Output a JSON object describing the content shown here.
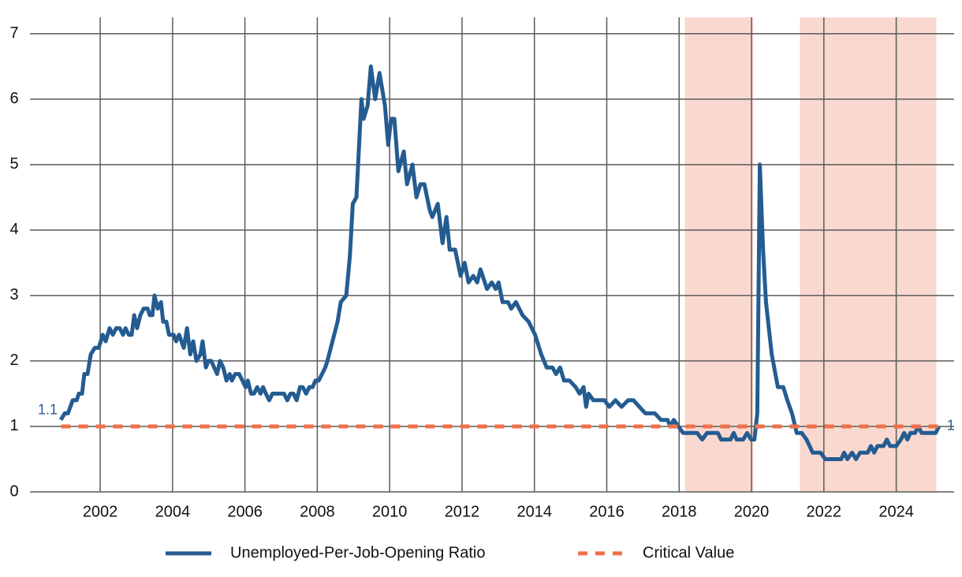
{
  "chart_data": {
    "type": "line",
    "xlim": [
      2000.05,
      2025.6
    ],
    "ylim": [
      0,
      7.25
    ],
    "xticks": [
      2002,
      2004,
      2006,
      2008,
      2010,
      2012,
      2014,
      2016,
      2018,
      2020,
      2022,
      2024
    ],
    "yticks": [
      0,
      1,
      2,
      3,
      4,
      5,
      6,
      7
    ],
    "grid": true,
    "legend": "bottom",
    "end_labels": true,
    "shaded_regions": [
      [
        2018.16,
        2020.05
      ],
      [
        2021.34,
        2025.11
      ]
    ],
    "shade_color": "#f9d9cf",
    "series": [
      {
        "name": "Unemployed-Per-Job-Opening Ratio",
        "color": "#245c91",
        "style": "solid",
        "x": [
          2000.91,
          2001.02,
          2001.11,
          2001.24,
          2001.35,
          2001.41,
          2001.5,
          2001.56,
          2001.65,
          2001.74,
          2001.85,
          2001.96,
          2002.07,
          2002.15,
          2002.26,
          2002.35,
          2002.44,
          2002.54,
          2002.63,
          2002.7,
          2002.79,
          2002.87,
          2002.94,
          2003.02,
          2003.11,
          2003.2,
          2003.31,
          2003.37,
          2003.44,
          2003.5,
          2003.59,
          2003.68,
          2003.74,
          2003.83,
          2003.9,
          2004.03,
          2004.1,
          2004.18,
          2004.31,
          2004.4,
          2004.49,
          2004.57,
          2004.66,
          2004.77,
          2004.83,
          2004.92,
          2004.99,
          2005.07,
          2005.23,
          2005.31,
          2005.4,
          2005.49,
          2005.58,
          2005.64,
          2005.73,
          2005.84,
          2005.93,
          2006.02,
          2006.08,
          2006.17,
          2006.25,
          2006.34,
          2006.43,
          2006.5,
          2006.58,
          2006.67,
          2006.76,
          2007.08,
          2007.17,
          2007.26,
          2007.34,
          2007.43,
          2007.52,
          2007.6,
          2007.69,
          2007.78,
          2007.87,
          2007.95,
          2008.04,
          2008.13,
          2008.22,
          2008.28,
          2008.56,
          2008.65,
          2008.8,
          2008.9,
          2008.98,
          2009.08,
          2009.22,
          2009.28,
          2009.39,
          2009.48,
          2009.6,
          2009.72,
          2009.87,
          2009.96,
          2010.04,
          2010.13,
          2010.24,
          2010.39,
          2010.48,
          2010.63,
          2010.74,
          2010.85,
          2010.96,
          2011.11,
          2011.18,
          2011.33,
          2011.46,
          2011.57,
          2011.66,
          2011.81,
          2011.96,
          2012.07,
          2012.18,
          2012.31,
          2012.42,
          2012.51,
          2012.69,
          2012.82,
          2012.93,
          2013.01,
          2013.12,
          2013.27,
          2013.36,
          2013.49,
          2013.67,
          2013.84,
          2014.02,
          2014.19,
          2014.34,
          2014.5,
          2014.6,
          2014.71,
          2014.82,
          2014.97,
          2015.14,
          2015.25,
          2015.36,
          2015.43,
          2015.5,
          2015.63,
          2015.94,
          2016.07,
          2016.24,
          2016.41,
          2016.59,
          2016.74,
          2016.9,
          2017.07,
          2017.33,
          2017.5,
          2017.68,
          2017.76,
          2017.85,
          2017.98,
          2018.11,
          2018.5,
          2018.64,
          2018.77,
          2019.07,
          2019.16,
          2019.42,
          2019.51,
          2019.59,
          2019.77,
          2019.88,
          2019.99,
          2020.08,
          2020.16,
          2020.23,
          2020.32,
          2020.4,
          2020.56,
          2020.73,
          2020.88,
          2020.99,
          2021.12,
          2021.25,
          2021.39,
          2021.52,
          2021.69,
          2021.91,
          2022.04,
          2022.48,
          2022.56,
          2022.65,
          2022.78,
          2022.89,
          2023.0,
          2023.21,
          2023.3,
          2023.39,
          2023.48,
          2023.65,
          2023.74,
          2023.83,
          2024.0,
          2024.13,
          2024.22,
          2024.31,
          2024.39,
          2024.52,
          2024.61,
          2024.7,
          2025.09,
          2025.18
        ],
        "values": [
          1.1,
          1.2,
          1.2,
          1.4,
          1.4,
          1.5,
          1.5,
          1.8,
          1.8,
          2.1,
          2.2,
          2.2,
          2.4,
          2.3,
          2.5,
          2.4,
          2.5,
          2.5,
          2.4,
          2.5,
          2.4,
          2.4,
          2.7,
          2.5,
          2.7,
          2.8,
          2.8,
          2.7,
          2.7,
          3.0,
          2.8,
          2.9,
          2.6,
          2.6,
          2.4,
          2.4,
          2.3,
          2.4,
          2.2,
          2.5,
          2.1,
          2.3,
          2.0,
          2.1,
          2.3,
          1.9,
          2.0,
          2.0,
          1.8,
          2.0,
          1.9,
          1.7,
          1.8,
          1.7,
          1.8,
          1.8,
          1.7,
          1.6,
          1.7,
          1.5,
          1.5,
          1.6,
          1.5,
          1.6,
          1.5,
          1.4,
          1.5,
          1.5,
          1.4,
          1.5,
          1.5,
          1.4,
          1.6,
          1.6,
          1.5,
          1.6,
          1.6,
          1.7,
          1.7,
          1.8,
          1.9,
          2.0,
          2.6,
          2.9,
          3.0,
          3.6,
          4.4,
          4.5,
          6.0,
          5.7,
          5.9,
          6.5,
          6.0,
          6.4,
          5.9,
          5.3,
          5.7,
          5.7,
          4.9,
          5.2,
          4.7,
          5.0,
          4.5,
          4.7,
          4.7,
          4.3,
          4.2,
          4.4,
          3.8,
          4.2,
          3.7,
          3.7,
          3.3,
          3.5,
          3.2,
          3.3,
          3.2,
          3.4,
          3.1,
          3.2,
          3.1,
          3.2,
          2.9,
          2.9,
          2.8,
          2.9,
          2.7,
          2.6,
          2.4,
          2.1,
          1.9,
          1.9,
          1.8,
          1.9,
          1.7,
          1.7,
          1.6,
          1.5,
          1.6,
          1.3,
          1.5,
          1.4,
          1.4,
          1.3,
          1.4,
          1.3,
          1.4,
          1.4,
          1.3,
          1.2,
          1.2,
          1.1,
          1.1,
          1.0,
          1.1,
          1.0,
          0.9,
          0.9,
          0.8,
          0.9,
          0.9,
          0.8,
          0.8,
          0.9,
          0.8,
          0.8,
          0.9,
          0.8,
          0.8,
          1.2,
          5.0,
          3.7,
          2.9,
          2.1,
          1.6,
          1.6,
          1.4,
          1.2,
          0.9,
          0.9,
          0.8,
          0.6,
          0.6,
          0.5,
          0.5,
          0.6,
          0.5,
          0.6,
          0.5,
          0.6,
          0.6,
          0.7,
          0.6,
          0.7,
          0.7,
          0.8,
          0.7,
          0.7,
          0.8,
          0.9,
          0.8,
          0.9,
          0.9,
          1.0,
          0.9,
          0.9,
          1.0
        ]
      },
      {
        "name": "Critical Value",
        "color": "#f07048",
        "style": "dashed",
        "x": [
          2000.92,
          2025.18
        ],
        "values": [
          1,
          1
        ]
      }
    ]
  }
}
